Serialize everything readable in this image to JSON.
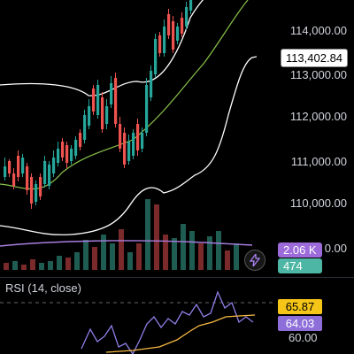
{
  "price_axis": {
    "ticks": [
      "114,000.00",
      "113,000.00",
      "112,000.00",
      "111,000.00",
      "110,000.00"
    ],
    "partial_tick": "0.00",
    "current_price": "113,402.84"
  },
  "volume_badges": {
    "volume": "2.06 K",
    "volume_color": "#9c6ad9",
    "volume_ma": "474",
    "volume_ma_color": "#4db6a4"
  },
  "rsi": {
    "title": "RSI (14, close)",
    "upper_value": "65.87",
    "upper_color": "#f5c518",
    "rsi_value": "64.03",
    "rsi_color": "#8e6ed9",
    "axis_label": "60.00"
  },
  "colors": {
    "up": "#26a69a",
    "down": "#ef5350",
    "band": "#ffffff",
    "basis": "#8bc34a",
    "rsi_line": "#8e7ee6",
    "rsi_ma": "#f5b942"
  },
  "icons": {
    "indicator_button": "lightning-icon"
  }
}
